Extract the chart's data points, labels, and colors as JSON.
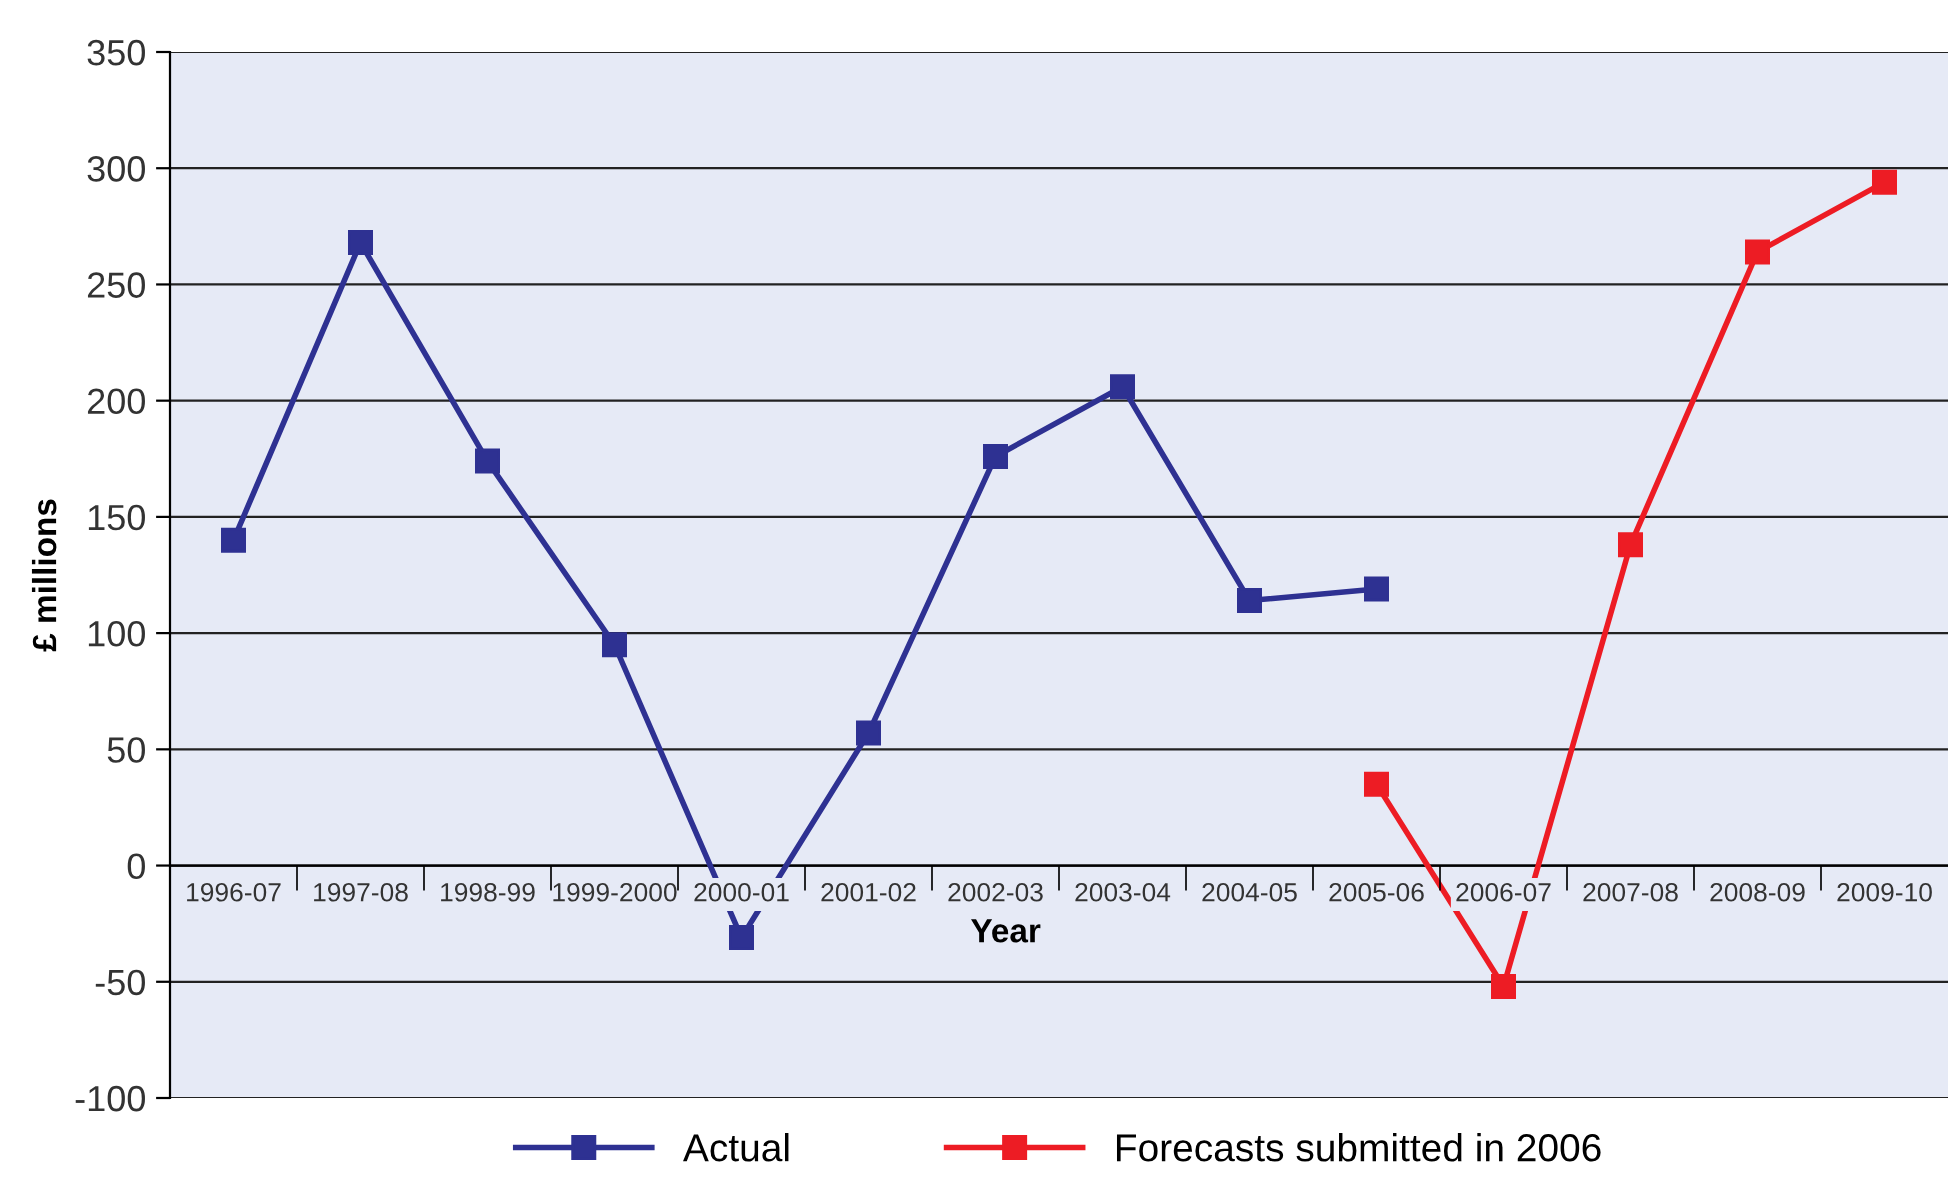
{
  "chart_data": {
    "type": "line",
    "xlabel": "Year",
    "ylabel": "£ millions",
    "categories": [
      "1996-07",
      "1997-08",
      "1998-99",
      "1999-2000",
      "2000-01",
      "2001-02",
      "2002-03",
      "2003-04",
      "2004-05",
      "2005-06",
      "2006-07",
      "2007-08",
      "2008-09",
      "2009-10"
    ],
    "series": [
      {
        "name": "Actual",
        "color": "#2e3192",
        "values": [
          140,
          268,
          174,
          95,
          -31,
          57,
          176,
          206,
          114,
          119,
          null,
          null,
          null,
          null
        ]
      },
      {
        "name": "Forecasts submitted in 2006",
        "color": "#ed1c24",
        "values": [
          null,
          null,
          null,
          null,
          null,
          null,
          null,
          null,
          null,
          35,
          -52,
          138,
          264,
          294
        ]
      }
    ],
    "ylim": [
      -100,
      350
    ],
    "yticks": [
      -100,
      -50,
      0,
      50,
      100,
      150,
      200,
      250,
      300,
      350
    ],
    "grid": "y",
    "legend": "bottom",
    "marker": "square",
    "line_style": "solid"
  }
}
